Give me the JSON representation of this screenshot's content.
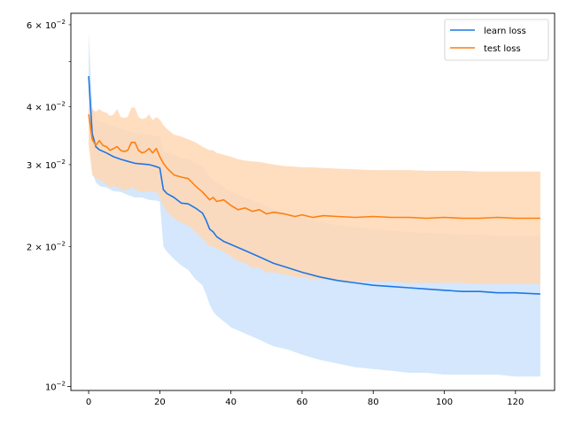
{
  "chart_data": {
    "type": "line",
    "title": "",
    "xlabel": "",
    "ylabel": "",
    "xlim": [
      -5,
      131
    ],
    "ylim": [
      0.0098,
      0.0635
    ],
    "yscale": "log",
    "grid": false,
    "legend_position": "upper right",
    "x_ticks": [
      0,
      20,
      40,
      60,
      80,
      100,
      120
    ],
    "x_tick_labels": [
      "0",
      "20",
      "40",
      "60",
      "80",
      "100",
      "120"
    ],
    "y_major_ticks": [
      0.01
    ],
    "y_labeled_minor_ticks": [
      0.02,
      0.03,
      0.04,
      0.06
    ],
    "y_unlabeled_minor_ticks": [
      0.05
    ],
    "y_tick_labels": [
      {
        "value": 0.01,
        "mantissa": "10",
        "exponent": "−2"
      },
      {
        "value": 0.02,
        "mantissa": "2 × 10",
        "exponent": "−2"
      },
      {
        "value": 0.03,
        "mantissa": "3 × 10",
        "exponent": "−2"
      },
      {
        "value": 0.04,
        "mantissa": "4 × 10",
        "exponent": "−2"
      },
      {
        "value": 0.06,
        "mantissa": "6 × 10",
        "exponent": "−2"
      }
    ],
    "series": [
      {
        "name": "learn loss",
        "color": "#1f77e4",
        "band_color": "#cce3fb",
        "x": [
          0,
          1,
          2,
          3,
          5,
          7,
          9,
          11,
          13,
          15,
          17,
          19,
          20,
          21,
          22,
          24,
          26,
          28,
          30,
          32,
          33,
          34,
          35,
          36,
          38,
          40,
          44,
          48,
          52,
          56,
          60,
          65,
          70,
          75,
          80,
          85,
          90,
          95,
          100,
          105,
          110,
          115,
          120,
          127
        ],
        "mean": [
          0.0465,
          0.035,
          0.0328,
          0.0323,
          0.0318,
          0.0312,
          0.0308,
          0.0305,
          0.0302,
          0.0301,
          0.03,
          0.0297,
          0.0295,
          0.0265,
          0.026,
          0.0255,
          0.0248,
          0.0247,
          0.0242,
          0.0236,
          0.0228,
          0.0218,
          0.0215,
          0.021,
          0.0205,
          0.0202,
          0.0196,
          0.019,
          0.0184,
          0.018,
          0.0176,
          0.0172,
          0.0169,
          0.0167,
          0.0165,
          0.0164,
          0.0163,
          0.0162,
          0.0161,
          0.016,
          0.016,
          0.0159,
          0.0159,
          0.0158
        ],
        "lower": [
          0.036,
          0.029,
          0.0275,
          0.027,
          0.0268,
          0.0263,
          0.0262,
          0.0258,
          0.0255,
          0.0255,
          0.0252,
          0.0251,
          0.025,
          0.02,
          0.0195,
          0.0188,
          0.0182,
          0.0178,
          0.017,
          0.0165,
          0.0158,
          0.015,
          0.0145,
          0.0142,
          0.0138,
          0.0134,
          0.013,
          0.0126,
          0.0122,
          0.012,
          0.0117,
          0.0114,
          0.0112,
          0.011,
          0.0109,
          0.0108,
          0.0107,
          0.0107,
          0.0106,
          0.0106,
          0.0106,
          0.0106,
          0.0105,
          0.0105
        ],
        "upper": [
          0.058,
          0.04,
          0.0375,
          0.0372,
          0.0368,
          0.0362,
          0.0358,
          0.0355,
          0.0352,
          0.035,
          0.0348,
          0.0346,
          0.0345,
          0.032,
          0.0318,
          0.0315,
          0.031,
          0.0308,
          0.0302,
          0.0298,
          0.029,
          0.0282,
          0.0278,
          0.0275,
          0.0268,
          0.0262,
          0.0255,
          0.0248,
          0.024,
          0.0235,
          0.023,
          0.0226,
          0.0222,
          0.022,
          0.0218,
          0.0216,
          0.0215,
          0.0214,
          0.0213,
          0.0212,
          0.0212,
          0.0211,
          0.0211,
          0.0211
        ]
      },
      {
        "name": "test loss",
        "color": "#ff7f0e",
        "band_color": "#ffd7b4",
        "x": [
          0,
          1,
          2,
          3,
          4,
          5,
          6,
          7,
          8,
          9,
          10,
          11,
          12,
          13,
          14,
          15,
          16,
          17,
          18,
          19,
          20,
          21,
          22,
          24,
          26,
          28,
          30,
          32,
          34,
          35,
          36,
          38,
          40,
          42,
          44,
          46,
          48,
          50,
          52,
          55,
          58,
          60,
          63,
          66,
          70,
          75,
          80,
          85,
          90,
          95,
          100,
          105,
          110,
          115,
          120,
          127
        ],
        "mean": [
          0.0385,
          0.034,
          0.033,
          0.0338,
          0.033,
          0.0328,
          0.0322,
          0.0325,
          0.0328,
          0.0322,
          0.032,
          0.0322,
          0.0335,
          0.0335,
          0.0322,
          0.0318,
          0.032,
          0.0325,
          0.0318,
          0.0325,
          0.0312,
          0.0302,
          0.0295,
          0.0285,
          0.0282,
          0.028,
          0.027,
          0.0262,
          0.0252,
          0.0255,
          0.025,
          0.0252,
          0.0245,
          0.024,
          0.0242,
          0.0238,
          0.024,
          0.0235,
          0.0237,
          0.0235,
          0.0232,
          0.0234,
          0.0231,
          0.0233,
          0.0232,
          0.0231,
          0.0232,
          0.0231,
          0.0231,
          0.023,
          0.0231,
          0.023,
          0.023,
          0.0231,
          0.023,
          0.023
        ],
        "lower": [
          0.033,
          0.0285,
          0.028,
          0.0278,
          0.0275,
          0.0272,
          0.0268,
          0.027,
          0.0268,
          0.0266,
          0.0264,
          0.0265,
          0.0268,
          0.0266,
          0.0263,
          0.0262,
          0.0262,
          0.0263,
          0.0262,
          0.0262,
          0.0255,
          0.0245,
          0.0238,
          0.023,
          0.0225,
          0.0222,
          0.0215,
          0.0208,
          0.02,
          0.02,
          0.0198,
          0.0195,
          0.019,
          0.0186,
          0.0184,
          0.018,
          0.018,
          0.0176,
          0.0176,
          0.0174,
          0.0172,
          0.0172,
          0.017,
          0.017,
          0.0169,
          0.0168,
          0.0168,
          0.0168,
          0.0167,
          0.0167,
          0.0167,
          0.0167,
          0.0166,
          0.0166,
          0.0166,
          0.0166
        ],
        "upper": [
          0.04,
          0.0395,
          0.039,
          0.0395,
          0.039,
          0.0388,
          0.0382,
          0.0385,
          0.0395,
          0.038,
          0.0378,
          0.038,
          0.0398,
          0.0398,
          0.038,
          0.0376,
          0.0378,
          0.0385,
          0.0374,
          0.038,
          0.0375,
          0.0365,
          0.0358,
          0.0348,
          0.0345,
          0.034,
          0.0335,
          0.0328,
          0.0322,
          0.0322,
          0.0318,
          0.0315,
          0.0312,
          0.0308,
          0.0306,
          0.0305,
          0.0304,
          0.0302,
          0.03,
          0.0298,
          0.0297,
          0.0296,
          0.0296,
          0.0295,
          0.0294,
          0.0293,
          0.0292,
          0.0292,
          0.0292,
          0.0291,
          0.0291,
          0.0291,
          0.029,
          0.029,
          0.029,
          0.029
        ]
      }
    ]
  }
}
